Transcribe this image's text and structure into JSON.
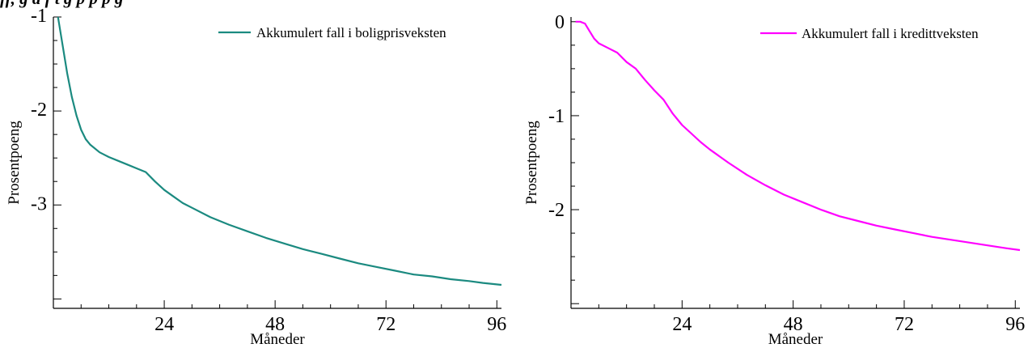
{
  "caption": "ff, g  d  f  t  g p     p    p  g",
  "chart_data": [
    {
      "type": "line",
      "xlabel": "Måneder",
      "ylabel": "Prosentpoeng",
      "xlim": [
        0,
        97
      ],
      "ylim": [
        -4.1,
        -1
      ],
      "xticks": [
        24,
        48,
        72,
        96
      ],
      "yticks": [
        -1,
        -2,
        -3
      ],
      "legend_position": "top-right",
      "series": [
        {
          "name": "Akkumulert fall i boligprisveksten",
          "color": "#1b8a80",
          "x": [
            1,
            2,
            3,
            4,
            5,
            6,
            7,
            8,
            10,
            12,
            14,
            16,
            18,
            20,
            22,
            24,
            26,
            28,
            30,
            34,
            38,
            42,
            46,
            50,
            54,
            58,
            62,
            66,
            70,
            74,
            78,
            82,
            86,
            90,
            93,
            97
          ],
          "y": [
            -1.0,
            -1.3,
            -1.6,
            -1.85,
            -2.05,
            -2.2,
            -2.3,
            -2.36,
            -2.44,
            -2.49,
            -2.53,
            -2.57,
            -2.61,
            -2.65,
            -2.75,
            -2.84,
            -2.91,
            -2.98,
            -3.03,
            -3.13,
            -3.21,
            -3.28,
            -3.35,
            -3.41,
            -3.47,
            -3.52,
            -3.57,
            -3.62,
            -3.66,
            -3.7,
            -3.74,
            -3.76,
            -3.79,
            -3.81,
            -3.83,
            -3.85
          ]
        }
      ]
    },
    {
      "type": "line",
      "xlabel": "Måneder",
      "ylabel": "Prosentpoeng",
      "xlim": [
        0,
        97
      ],
      "ylim": [
        -3.05,
        0.05
      ],
      "xticks": [
        24,
        48,
        72,
        96
      ],
      "yticks": [
        0,
        -1,
        -2
      ],
      "legend_position": "top-right",
      "series": [
        {
          "name": "Akkumulert fall i kredittveksten",
          "color": "#ff00ff",
          "x": [
            1,
            2,
            3,
            4,
            5,
            6,
            8,
            10,
            12,
            14,
            16,
            18,
            20,
            22,
            24,
            26,
            28,
            30,
            34,
            38,
            42,
            46,
            50,
            54,
            58,
            62,
            66,
            70,
            74,
            78,
            82,
            86,
            90,
            94,
            97
          ],
          "y": [
            0.0,
            0.0,
            -0.02,
            -0.1,
            -0.18,
            -0.23,
            -0.28,
            -0.33,
            -0.43,
            -0.5,
            -0.62,
            -0.73,
            -0.83,
            -0.98,
            -1.1,
            -1.19,
            -1.28,
            -1.36,
            -1.5,
            -1.63,
            -1.74,
            -1.84,
            -1.92,
            -2.0,
            -2.07,
            -2.12,
            -2.17,
            -2.21,
            -2.25,
            -2.29,
            -2.32,
            -2.35,
            -2.38,
            -2.41,
            -2.43
          ]
        }
      ]
    }
  ]
}
